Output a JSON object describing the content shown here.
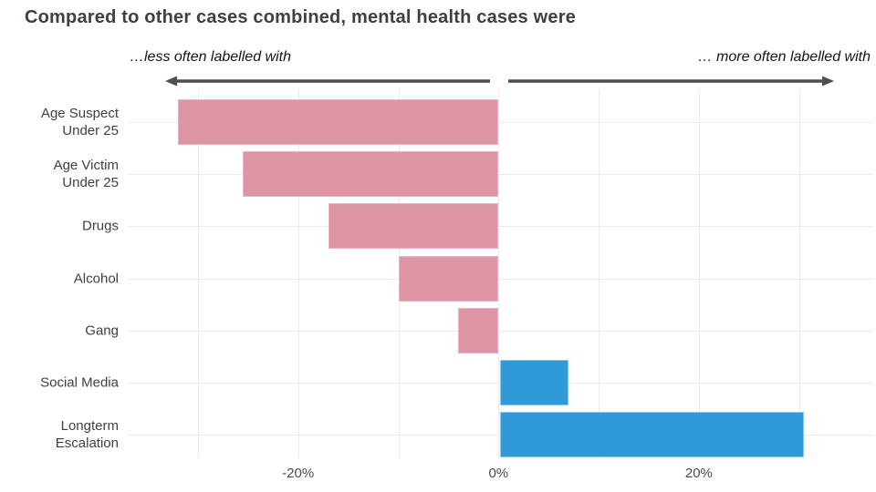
{
  "chart": {
    "title": "Compared to other cases combined, mental health cases were",
    "annotation_left": "…less often labelled with",
    "annotation_right": "… more often labelled with"
  },
  "chart_data": {
    "type": "bar",
    "orientation": "horizontal",
    "title": "Compared to other cases combined, mental health cases were",
    "categories": [
      "Age Suspect\nUnder 25",
      "Age Victim\nUnder 25",
      "Drugs",
      "Alcohol",
      "Gang",
      "Social Media",
      "Longterm\nEscalation"
    ],
    "values": [
      -32,
      -25.5,
      -17,
      -10,
      -4,
      7,
      30.5
    ],
    "unit": "%",
    "xlabel": "",
    "ylabel": "",
    "xlim": [
      -37,
      37.4
    ],
    "x_gridlines": [
      -30,
      -20,
      -10,
      0,
      10,
      20,
      30
    ],
    "x_ticks": [
      {
        "value": -20,
        "label": "-20%"
      },
      {
        "value": 0,
        "label": "0%"
      },
      {
        "value": 20,
        "label": "20%"
      }
    ],
    "grid": true,
    "legend_position": "none",
    "colors": {
      "negative_bar": "#dd95a5",
      "positive_bar": "#2e9ad7",
      "gridline": "#ebebeb",
      "title_text": "#3c4147",
      "axis_text": "#4a4a4a",
      "label_text": "#404040",
      "annotation_text": "#141414",
      "arrow": "#4f4f4f",
      "background": "#ffffff"
    }
  }
}
